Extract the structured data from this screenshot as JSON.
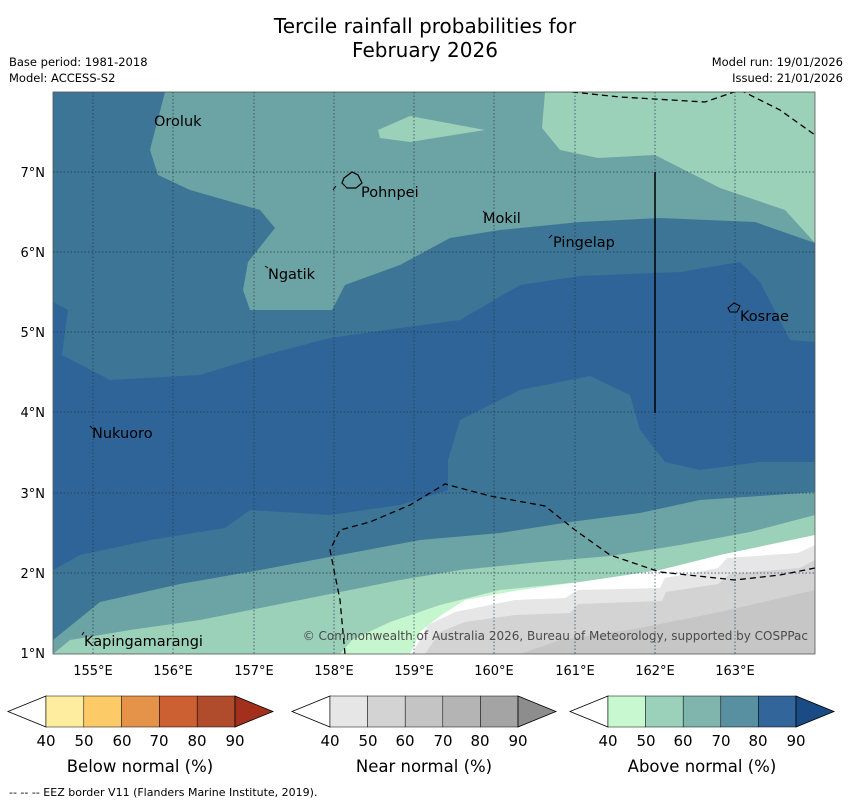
{
  "title": {
    "line1": "Tercile rainfall probabilities for",
    "line2": "February 2026"
  },
  "meta": {
    "base_period": "Base period: 1981-2018",
    "model": "Model: ACCESS-S2",
    "model_run": "Model run: 19/01/2026",
    "issued": "Issued: 21/01/2026"
  },
  "map": {
    "lon_ticks": [
      "155°E",
      "156°E",
      "157°E",
      "158°E",
      "159°E",
      "160°E",
      "161°E",
      "162°E",
      "163°E"
    ],
    "lat_ticks": [
      "7°N",
      "6°N",
      "5°N",
      "4°N",
      "3°N",
      "2°N",
      "1°N"
    ],
    "places": [
      {
        "name": "Oroluk"
      },
      {
        "name": "Pohnpei"
      },
      {
        "name": "Mokil"
      },
      {
        "name": "Pingelap"
      },
      {
        "name": "Ngatik"
      },
      {
        "name": "Kosrae"
      },
      {
        "name": "Nukuoro"
      },
      {
        "name": "Kapingamarangi"
      }
    ],
    "credit": "© Commonwealth of Australia 2026, Bureau of Meteorology, supported by COSPPac"
  },
  "legend": {
    "below": {
      "title": "Below normal (%)",
      "ticks": [
        "40",
        "50",
        "60",
        "70",
        "80",
        "90"
      ],
      "colors": [
        "#ffffff",
        "#ffed9f",
        "#fdca68",
        "#e49349",
        "#cc6033",
        "#b04b2b",
        "#a3301d"
      ]
    },
    "near": {
      "title": "Near normal (%)",
      "ticks": [
        "40",
        "50",
        "60",
        "70",
        "80",
        "90"
      ],
      "colors": [
        "#ffffff",
        "#e6e6e6",
        "#d3d3d3",
        "#c4c4c4",
        "#b4b4b4",
        "#a4a4a4",
        "#8d8d8d"
      ]
    },
    "above": {
      "title": "Above normal (%)",
      "ticks": [
        "40",
        "50",
        "60",
        "70",
        "80",
        "90"
      ],
      "colors": [
        "#ffffff",
        "#c8f8d0",
        "#9bd1ba",
        "#80b5ad",
        "#588fa1",
        "#32669a",
        "#1b4b84"
      ]
    }
  },
  "footer": "--  --  -- EEZ border V11 (Flanders Marine Institute, 2019)."
}
